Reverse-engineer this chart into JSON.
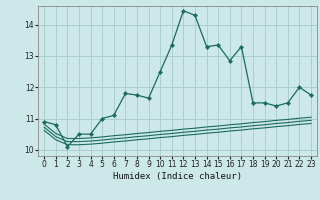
{
  "title": "",
  "xlabel": "Humidex (Indice chaleur)",
  "bg_color": "#cce8e8",
  "grid_color": "#aacfcf",
  "line_color": "#1a6b5a",
  "xlim": [
    -0.5,
    23.5
  ],
  "ylim": [
    9.8,
    14.6
  ],
  "yticks": [
    10,
    11,
    12,
    13,
    14
  ],
  "xticks": [
    0,
    1,
    2,
    3,
    4,
    5,
    6,
    7,
    8,
    9,
    10,
    11,
    12,
    13,
    14,
    15,
    16,
    17,
    18,
    19,
    20,
    21,
    22,
    23
  ],
  "main_line": {
    "x": [
      0,
      1,
      2,
      3,
      4,
      5,
      6,
      7,
      8,
      9,
      10,
      11,
      12,
      13,
      14,
      15,
      16,
      17,
      18,
      19,
      20,
      21,
      22,
      23
    ],
    "y": [
      10.9,
      10.8,
      10.1,
      10.5,
      10.5,
      11.0,
      11.1,
      11.8,
      11.75,
      11.65,
      12.5,
      13.35,
      14.45,
      14.3,
      13.3,
      13.35,
      12.85,
      13.3,
      11.5,
      11.5,
      11.4,
      11.5,
      12.0,
      11.75
    ]
  },
  "line2": {
    "x": [
      0,
      1,
      2,
      3,
      4,
      5,
      6,
      7,
      8,
      9,
      10,
      11,
      12,
      13,
      14,
      15,
      16,
      17,
      18,
      19,
      20,
      21,
      22,
      23
    ],
    "y": [
      10.82,
      10.52,
      10.36,
      10.36,
      10.38,
      10.41,
      10.45,
      10.48,
      10.52,
      10.55,
      10.59,
      10.62,
      10.66,
      10.69,
      10.73,
      10.76,
      10.8,
      10.83,
      10.87,
      10.9,
      10.94,
      10.97,
      11.01,
      11.04
    ]
  },
  "line3": {
    "x": [
      0,
      1,
      2,
      3,
      4,
      5,
      6,
      7,
      8,
      9,
      10,
      11,
      12,
      13,
      14,
      15,
      16,
      17,
      18,
      19,
      20,
      21,
      22,
      23
    ],
    "y": [
      10.72,
      10.42,
      10.26,
      10.26,
      10.28,
      10.31,
      10.35,
      10.38,
      10.42,
      10.45,
      10.49,
      10.52,
      10.56,
      10.59,
      10.63,
      10.66,
      10.7,
      10.73,
      10.77,
      10.8,
      10.84,
      10.87,
      10.91,
      10.94
    ]
  },
  "line4": {
    "x": [
      0,
      1,
      2,
      3,
      4,
      5,
      6,
      7,
      8,
      9,
      10,
      11,
      12,
      13,
      14,
      15,
      16,
      17,
      18,
      19,
      20,
      21,
      22,
      23
    ],
    "y": [
      10.62,
      10.32,
      10.16,
      10.16,
      10.18,
      10.21,
      10.25,
      10.28,
      10.32,
      10.35,
      10.39,
      10.42,
      10.46,
      10.49,
      10.53,
      10.56,
      10.6,
      10.63,
      10.67,
      10.7,
      10.74,
      10.77,
      10.81,
      10.84
    ]
  }
}
